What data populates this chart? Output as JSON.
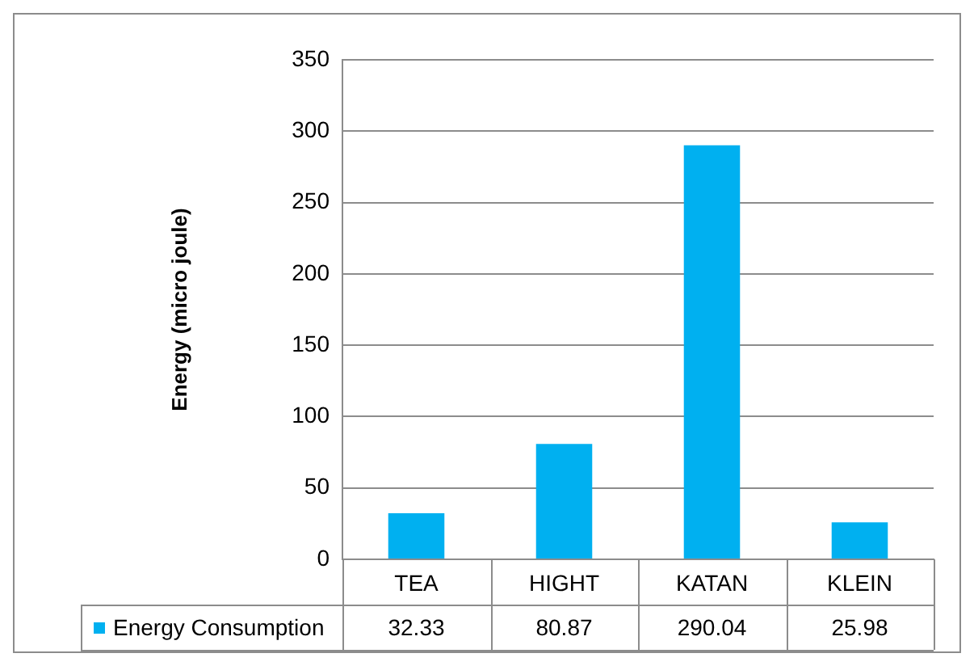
{
  "chart_data": {
    "type": "bar",
    "ylabel": "Energy (micro joule)",
    "categories": [
      "TEA",
      "HIGHT",
      "KATAN",
      "KLEIN"
    ],
    "series": [
      {
        "name": "Energy Consumption",
        "color": "#00b0f0",
        "values": [
          32.33,
          80.87,
          290.04,
          25.98
        ]
      }
    ],
    "ylim": [
      0,
      350
    ],
    "yticks": [
      0,
      50,
      100,
      150,
      200,
      250,
      300,
      350
    ],
    "grid": "y",
    "legend": "bottom",
    "data_labels": true
  }
}
